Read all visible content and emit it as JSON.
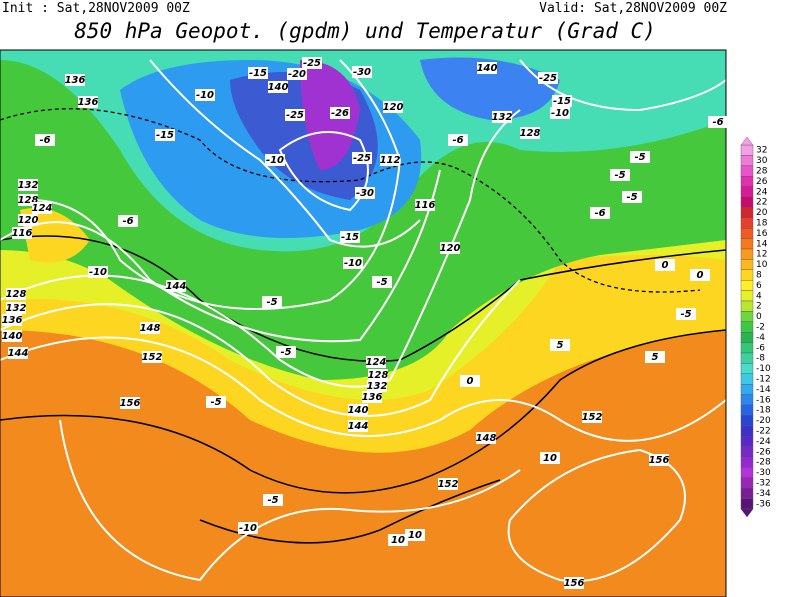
{
  "header": {
    "init": "Init : Sat,28NOV2009 00Z",
    "valid": "Valid: Sat,28NOV2009 00Z",
    "title": "850 hPa Geopot. (gpdm) und Temperatur (Grad C)"
  },
  "legend": {
    "levels": [
      32,
      30,
      28,
      26,
      24,
      22,
      20,
      18,
      16,
      14,
      12,
      10,
      8,
      6,
      4,
      2,
      0,
      -2,
      -4,
      -6,
      -8,
      -10,
      -12,
      -14,
      -16,
      -18,
      -20,
      -22,
      -24,
      -26,
      -28,
      -30,
      -32,
      -34,
      -36
    ],
    "colors": [
      "#f5a0e6",
      "#f07ad8",
      "#e855c8",
      "#e030b0",
      "#d81a98",
      "#c80a6e",
      "#d2282d",
      "#e6412d",
      "#f05a23",
      "#f57a1e",
      "#f89a1c",
      "#fbb91e",
      "#fdd622",
      "#ffee28",
      "#e6f028",
      "#b4e632",
      "#6ed73c",
      "#3cc846",
      "#28b450",
      "#32c878",
      "#3cd2a0",
      "#46dcc8",
      "#3cc8e6",
      "#32aaf0",
      "#2d87f0",
      "#2864e6",
      "#2846d2",
      "#3c32c8",
      "#5a28c8",
      "#7828c8",
      "#9628d2",
      "#b432dc",
      "#9628b4",
      "#7a1e96",
      "#5a1478"
    ]
  },
  "map": {
    "contour_labels": [
      "136",
      "136",
      "-6",
      "-15",
      "-10",
      "-15",
      "-20",
      "-25",
      "-30",
      "140",
      "-25",
      "-26",
      "-10",
      "120",
      "112",
      "-6",
      "-25",
      "-30",
      "-15",
      "-10",
      "116",
      "120",
      "-5",
      "132",
      "128",
      "124",
      "120",
      "116",
      "-6",
      "-10",
      "144",
      "148",
      "152",
      "156",
      "128",
      "132",
      "136",
      "140",
      "144",
      "-5",
      "-5",
      "124",
      "128",
      "132",
      "136",
      "140",
      "144",
      "-5",
      "-5",
      "-10",
      "148",
      "152",
      "156",
      "152",
      "10",
      "10",
      "10",
      "156",
      "0",
      "5",
      "5",
      "0",
      "-5",
      "-5",
      "-6",
      "-5",
      "-6",
      "140",
      "-25",
      "-15",
      "132",
      "128",
      "-10",
      "-5",
      "0"
    ]
  }
}
